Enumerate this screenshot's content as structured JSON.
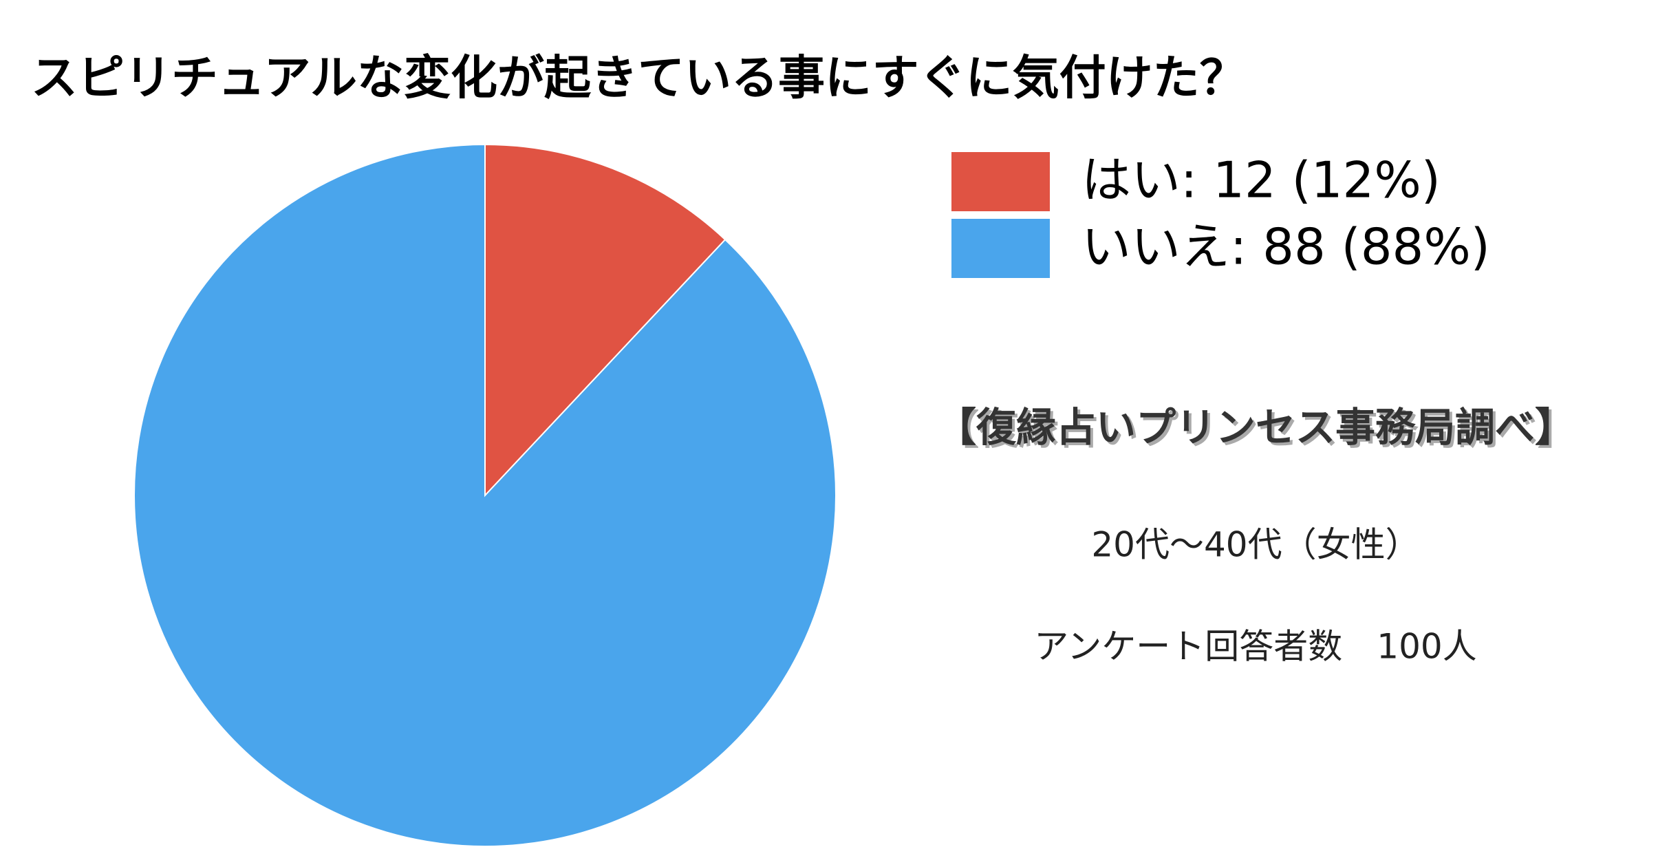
{
  "chart_data": {
    "type": "pie",
    "title": "スピリチュアルな変化が起きている事にすぐに気付けた？",
    "categories": [
      "はい: 12 (12%)",
      "いいえ: 88 (88%)"
    ],
    "values": [
      12,
      88
    ],
    "colors": [
      "#e05343",
      "#4aa5ec"
    ],
    "annotations": [
      "【復縁占いプリンセス事務局調べ】",
      "20代〜40代（女性）",
      "アンケート回答者数　100人"
    ]
  }
}
